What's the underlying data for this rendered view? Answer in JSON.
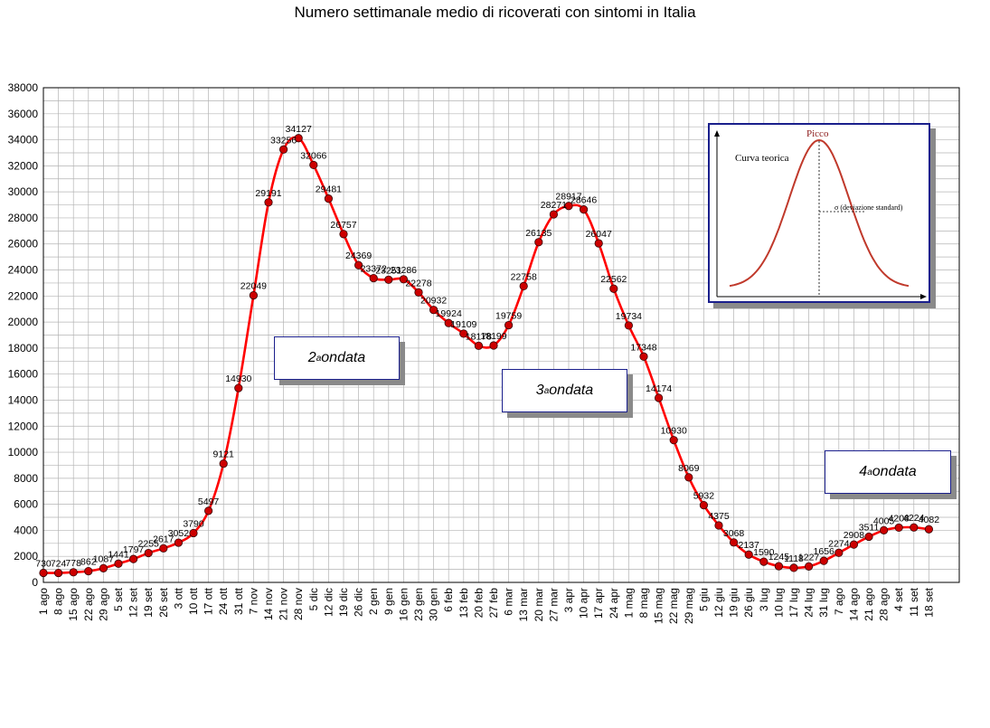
{
  "chart_data": {
    "type": "line",
    "title": "Numero settimanale medio di ricoverati con sintomi in Italia",
    "xlabel": "",
    "ylabel": "",
    "ylim": [
      0,
      38000
    ],
    "yticks": [
      "0",
      "2000",
      "4000",
      "6000",
      "8000",
      "10000",
      "12000",
      "14000",
      "16000",
      "18000",
      "20000",
      "22000",
      "24000",
      "26000",
      "28000",
      "30000",
      "32000",
      "34000",
      "36000",
      "38000"
    ],
    "grid": true,
    "line_color": "#ff0000",
    "marker_color": "#cc0000",
    "categories": [
      "1 ago",
      "8 ago",
      "15 ago",
      "22 ago",
      "29 ago",
      "5 set",
      "12 set",
      "19 set",
      "26 set",
      "3 ott",
      "10 ott",
      "17 ott",
      "24 ott",
      "31 ott",
      "7 nov",
      "14 nov",
      "21 nov",
      "28 nov",
      "5 dic",
      "12 dic",
      "19 dic",
      "26 dic",
      "2 gen",
      "9 gen",
      "16 gen",
      "23 gen",
      "30 gen",
      "6 feb",
      "13 feb",
      "20 feb",
      "27 feb",
      "6 mar",
      "13 mar",
      "20 mar",
      "27 mar",
      "3 apr",
      "10 apr",
      "17 apr",
      "24 apr",
      "1 mag",
      "8 mag",
      "15 mag",
      "22 mag",
      "29 mag",
      "5 giu",
      "12 giu",
      "19 giu",
      "26 giu",
      "3 lug",
      "10 lug",
      "17 lug",
      "24 lug",
      "31 lug",
      "7 ago",
      "14 ago",
      "21 ago",
      "28 ago",
      "4 set",
      "11 set",
      "18 set"
    ],
    "values": [
      730,
      724,
      778,
      862,
      1087,
      1441,
      1797,
      2255,
      2617,
      3052,
      3790,
      5497,
      9121,
      14930,
      22049,
      29191,
      33256,
      34127,
      32066,
      29481,
      26757,
      24369,
      23372,
      23251,
      23286,
      22278,
      20932,
      19924,
      19109,
      18178,
      18199,
      19759,
      22758,
      26135,
      28271,
      28917,
      28646,
      26047,
      22562,
      19734,
      17348,
      14174,
      10930,
      8069,
      5932,
      4375,
      3068,
      2137,
      1590,
      1245,
      1118,
      1227,
      1656,
      2274,
      2908,
      3511,
      4005,
      4208,
      4224,
      4082
    ],
    "labels": [
      "730",
      "724",
      "778",
      "862",
      "1087",
      "1441",
      "1797",
      "2255",
      "2617",
      "3052",
      "3790",
      "5497",
      "9121",
      "14930",
      "22049",
      "29191",
      "33256",
      "34127",
      "32066",
      "29481",
      "26757",
      "24369",
      "23372",
      "23251",
      "23286",
      "22278",
      "20932",
      "19924",
      "19109",
      "18178",
      "18199",
      "19759",
      "22758",
      "26135",
      "28271",
      "28917",
      "28646",
      "26047",
      "22562",
      "19734",
      "17348",
      "14174",
      "10930",
      "8069",
      "5932",
      "4375",
      "3068",
      "2137",
      "1590",
      "1245",
      "1118",
      "1227",
      "1656",
      "2274",
      "2908",
      "3511",
      "4005",
      "4208",
      "4224",
      "4082"
    ],
    "annotations": [
      {
        "prefix": "2",
        "sup": "a",
        "text": " ondata"
      },
      {
        "prefix": "3",
        "sup": "a",
        "text": " ondata"
      },
      {
        "prefix": "4",
        "sup": "a",
        "text": " ondata"
      }
    ]
  },
  "inset": {
    "peak_label": "Picco",
    "curve_label": "Curva teorica",
    "sigma_label": "σ  (deviazione standard)",
    "peak_color": "#8b1a1a",
    "curve_color": "#c0392b"
  }
}
